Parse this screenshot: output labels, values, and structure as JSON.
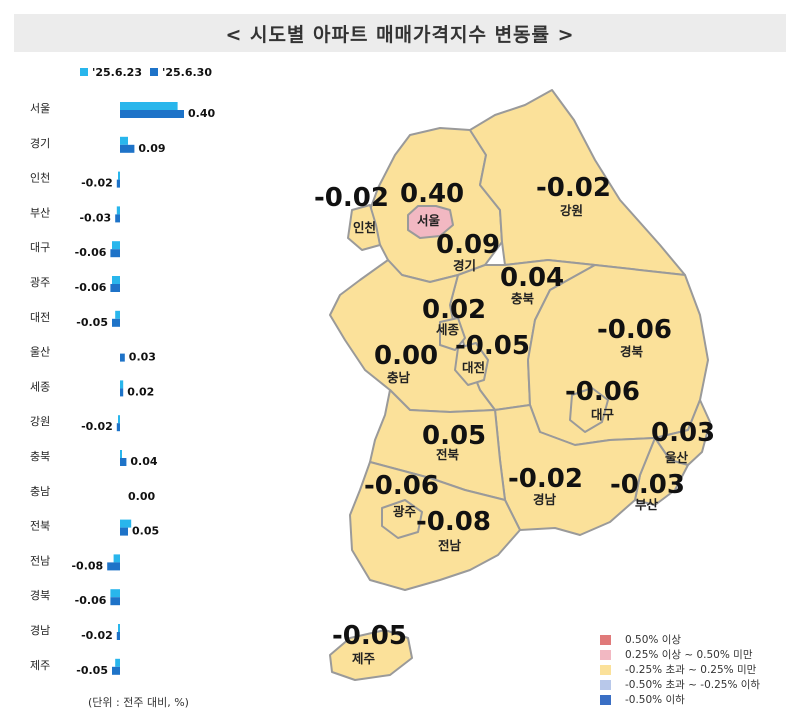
{
  "title": "< 시도별 아파트 매매가격지수 변동률 >",
  "colors": {
    "prev_week": "#29b6ec",
    "this_week": "#1e73c8",
    "map_fill": "#fbe19a",
    "map_high": "#f2b8c2",
    "map_border": "#9a9a9a"
  },
  "unit_note": "(단위 : 전주 대비, %)",
  "chart_data": {
    "type": "bar",
    "orientation": "horizontal",
    "categories": [
      "서울",
      "경기",
      "인천",
      "부산",
      "대구",
      "광주",
      "대전",
      "울산",
      "세종",
      "강원",
      "충북",
      "충남",
      "전북",
      "전남",
      "경북",
      "경남",
      "제주"
    ],
    "series": [
      {
        "name": "'25.6.23",
        "values": [
          0.36,
          0.05,
          -0.01,
          -0.02,
          -0.05,
          -0.05,
          -0.03,
          0.0,
          0.02,
          -0.01,
          0.01,
          0.0,
          0.07,
          -0.04,
          -0.06,
          -0.01,
          -0.03
        ]
      },
      {
        "name": "'25.6.30",
        "values": [
          0.4,
          0.09,
          -0.02,
          -0.03,
          -0.06,
          -0.06,
          -0.05,
          0.03,
          0.02,
          -0.02,
          0.04,
          0.0,
          0.05,
          -0.08,
          -0.06,
          -0.02,
          -0.05
        ]
      }
    ],
    "value_labels": [
      "0.40",
      "0.09",
      "-0.02",
      "-0.03",
      "-0.06",
      "-0.06",
      "-0.05",
      "0.03",
      "0.02",
      "-0.02",
      "0.04",
      "0.00",
      "0.05",
      "-0.08",
      "-0.06",
      "-0.02",
      "-0.05"
    ],
    "legend_position": "top-left"
  },
  "map": {
    "regions": [
      {
        "name": "서울",
        "value": "0.40"
      },
      {
        "name": "인천",
        "value": "-0.02"
      },
      {
        "name": "경기",
        "value": "0.09"
      },
      {
        "name": "강원",
        "value": "-0.02"
      },
      {
        "name": "충북",
        "value": "0.04"
      },
      {
        "name": "세종",
        "value": "0.02"
      },
      {
        "name": "충남",
        "value": "0.00"
      },
      {
        "name": "대전",
        "value": "-0.05"
      },
      {
        "name": "경북",
        "value": "-0.06"
      },
      {
        "name": "대구",
        "value": "-0.06"
      },
      {
        "name": "울산",
        "value": "0.03"
      },
      {
        "name": "전북",
        "value": "0.05"
      },
      {
        "name": "경남",
        "value": "-0.02"
      },
      {
        "name": "부산",
        "value": "-0.03"
      },
      {
        "name": "광주",
        "value": "-0.06"
      },
      {
        "name": "전남",
        "value": "-0.08"
      },
      {
        "name": "제주",
        "value": "-0.05"
      }
    ]
  },
  "legend": [
    {
      "label": "0.50% 이상",
      "color": "#e07a7a"
    },
    {
      "label": "0.25% 이상 ~ 0.50% 미만",
      "color": "#f2b8c2"
    },
    {
      "label": "-0.25% 초과 ~ 0.25% 미만",
      "color": "#fbe19a"
    },
    {
      "label": "-0.50% 초과 ~ -0.25% 이하",
      "color": "#b8c8ea"
    },
    {
      "label": "-0.50% 이하",
      "color": "#3a6fc4"
    }
  ]
}
